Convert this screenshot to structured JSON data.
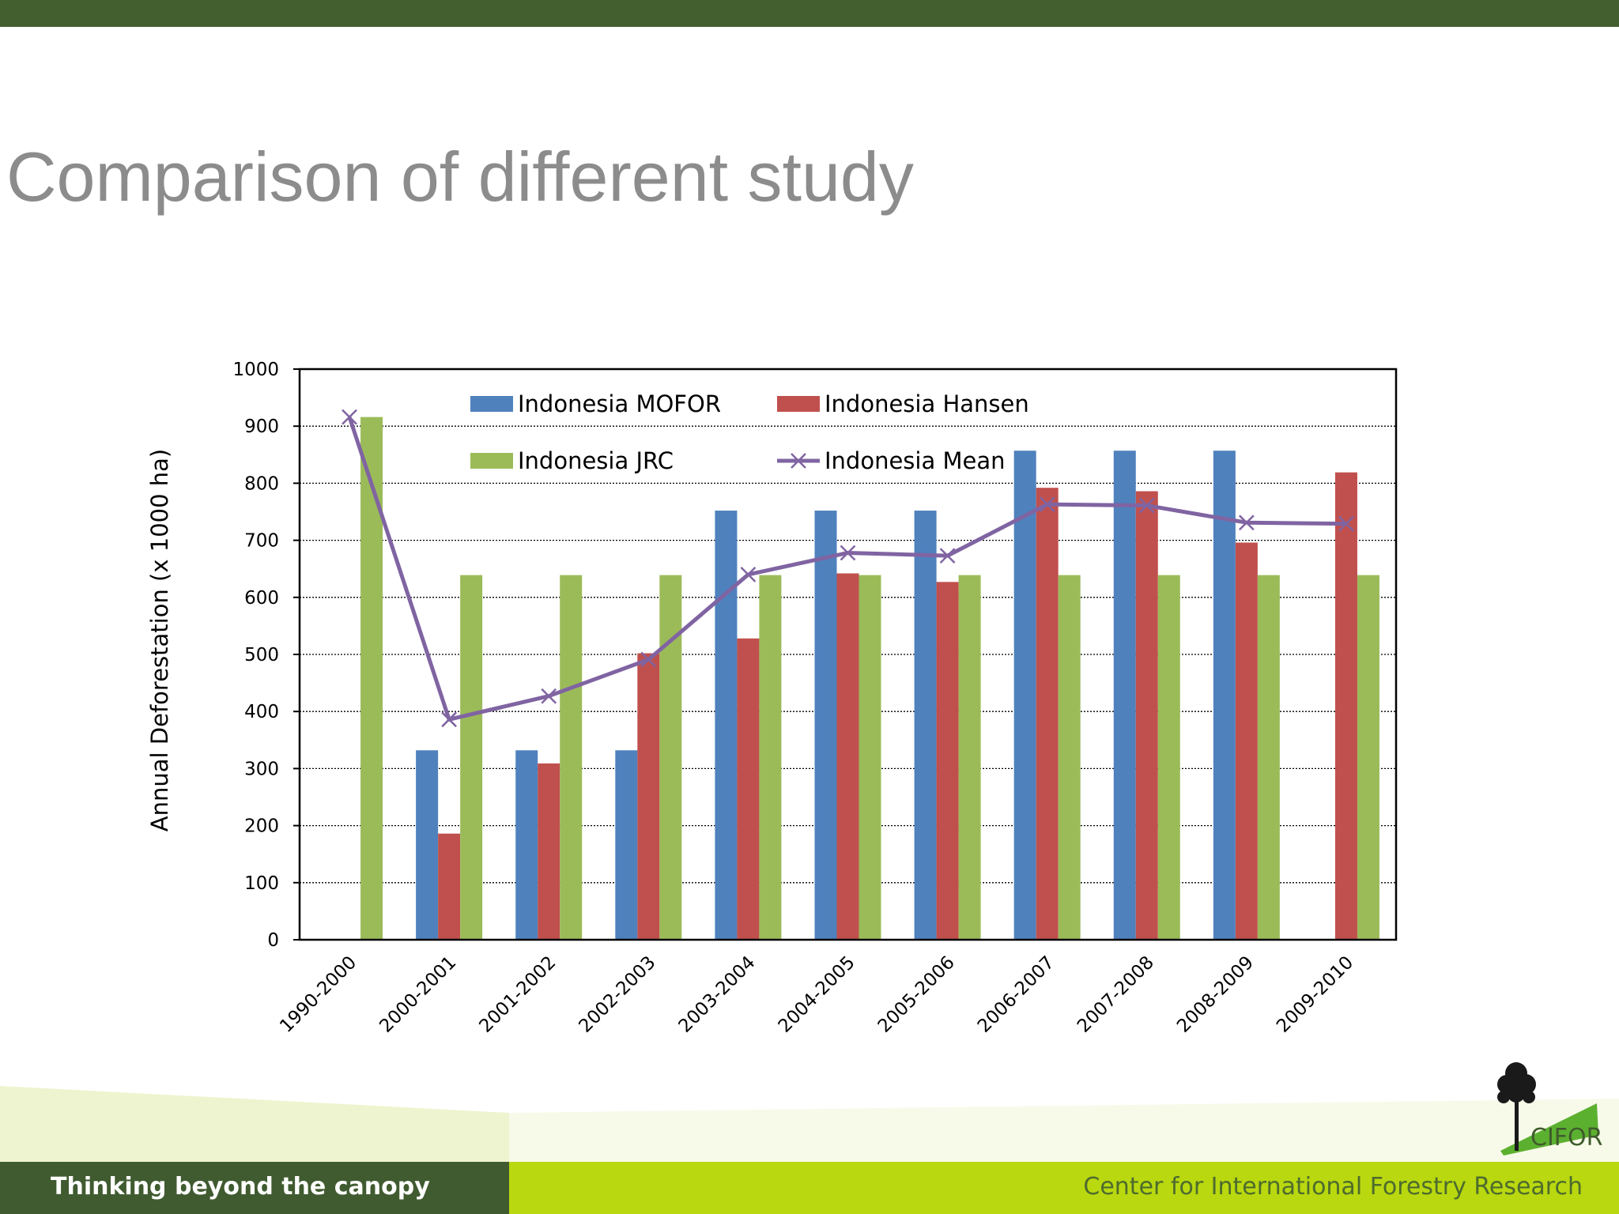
{
  "slide": {
    "title": "Comparison of different study",
    "footer_tagline": "Thinking beyond the canopy",
    "footer_org": "Center for International Forestry Research",
    "logo_text": "CIFOR"
  },
  "colors": {
    "top_bar": "#435f2f",
    "mofor": "#4f81bd",
    "hansen": "#c0504d",
    "jrc": "#9bbb59",
    "mean": "#8064a2"
  },
  "chart_data": {
    "type": "bar",
    "ylabel": "Annual Deforestation (x 1000 ha)",
    "xlabel": "",
    "ylim": [
      0,
      1000
    ],
    "yticks": [
      0,
      100,
      200,
      300,
      400,
      500,
      600,
      700,
      800,
      900,
      1000
    ],
    "grid": true,
    "legend_position": "top-left",
    "categories": [
      "1990-2000",
      "2000-2001",
      "2001-2002",
      "2002-2003",
      "2003-2004",
      "2004-2005",
      "2005-2006",
      "2006-2007",
      "2007-2008",
      "2008-2009",
      "2009-2010"
    ],
    "series": [
      {
        "name": "Indonesia MOFOR",
        "type": "bar",
        "values": [
          null,
          332,
          332,
          332,
          752,
          752,
          752,
          857,
          857,
          857,
          null
        ]
      },
      {
        "name": "Indonesia Hansen",
        "type": "bar",
        "values": [
          null,
          186,
          309,
          502,
          528,
          642,
          627,
          792,
          786,
          696,
          819
        ]
      },
      {
        "name": "Indonesia JRC",
        "type": "bar",
        "values": [
          916,
          639,
          639,
          639,
          639,
          639,
          639,
          639,
          639,
          639,
          639
        ]
      },
      {
        "name": "Indonesia Mean",
        "type": "line",
        "marker": "x",
        "values": [
          916,
          386,
          427,
          491,
          640,
          678,
          673,
          763,
          761,
          731,
          729
        ]
      }
    ]
  }
}
